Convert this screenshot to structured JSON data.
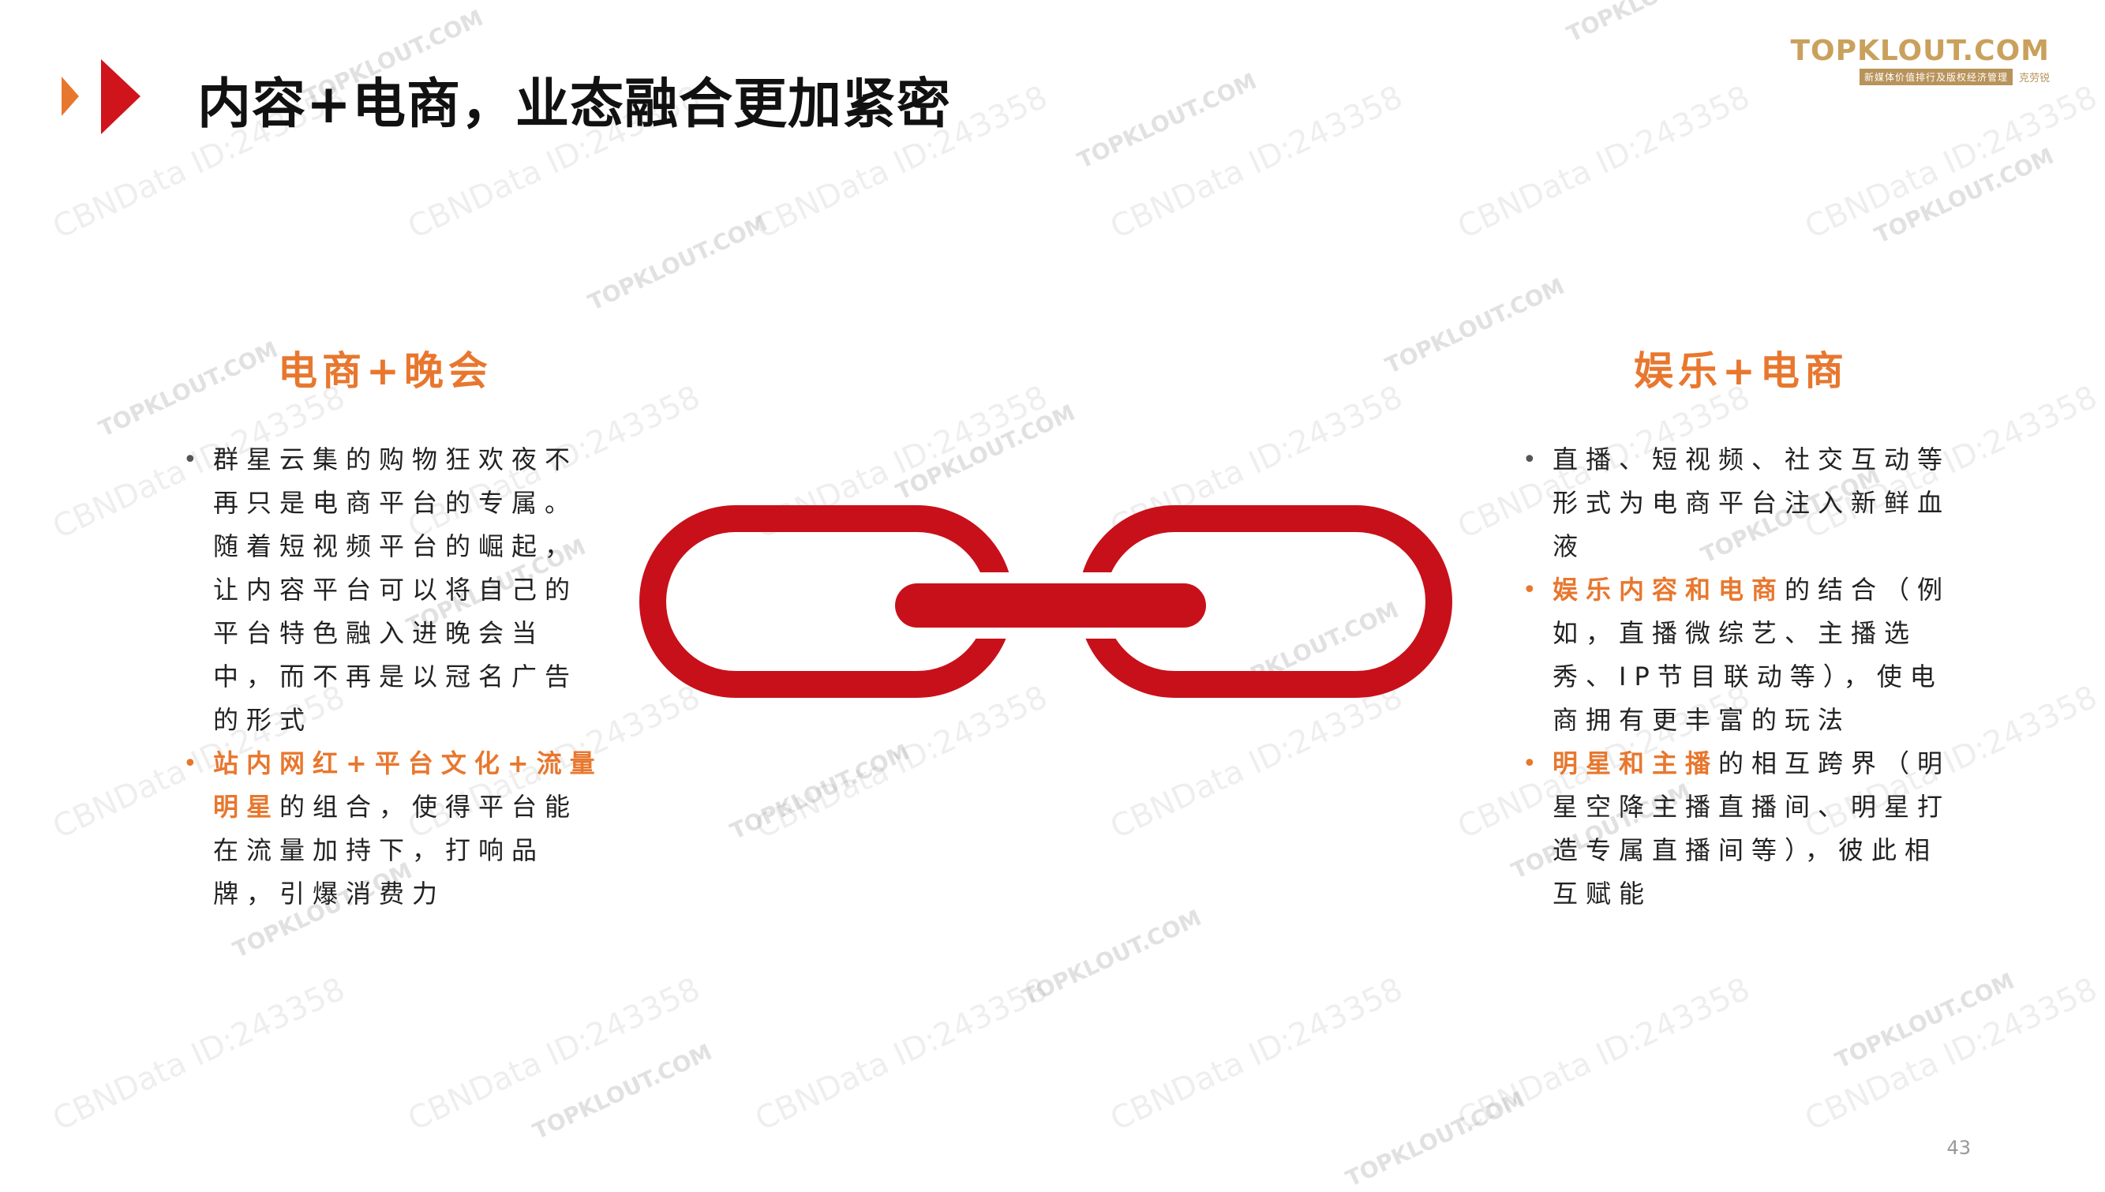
{
  "header": {
    "title": "内容+电商，业态融合更加紧密",
    "accent_color": "#d0141b",
    "secondary_accent": "#e8772e"
  },
  "logo": {
    "main": "TOPKLOUT.COM",
    "sub_bar": "新媒体价值排行及版权经济管理",
    "sub_tag": "克劳锐"
  },
  "left_section": {
    "title": "电商+晚会",
    "bullets": [
      {
        "segments": [
          {
            "text": "群星云集的购物狂欢夜不再只是电商平台的专属。随着短视频平台的崛起，让内容平台可以将自己的平台特色融入进晚会当中，而不再是以冠名广告的形式",
            "highlight": false
          }
        ]
      },
      {
        "segments": [
          {
            "text": "站内网红+平台文化+流量明星",
            "highlight": true
          },
          {
            "text": "的组合，使得平台能在流量加持下，打响品牌，引爆消费力",
            "highlight": false
          }
        ]
      }
    ]
  },
  "right_section": {
    "title": "娱乐+电商",
    "bullets": [
      {
        "segments": [
          {
            "text": "直播、短视频、社交互动等形式为电商平台注入新鲜血液",
            "highlight": false
          }
        ]
      },
      {
        "segments": [
          {
            "text": "娱乐内容和电商",
            "highlight": true
          },
          {
            "text": "的结合（例如，直播微综艺、主播选秀、IP节目联动等），使电商拥有更丰富的玩法",
            "highlight": false
          }
        ]
      },
      {
        "segments": [
          {
            "text": "明星和主播",
            "highlight": true
          },
          {
            "text": "的相互跨界（明星空降主播直播间、明星打造专属直播间等），彼此相互赋能",
            "highlight": false
          }
        ]
      }
    ]
  },
  "center_graphic": {
    "icon": "chain-link-icon",
    "color": "#c8101a"
  },
  "watermarks": {
    "text_a": "CBNData ID:243358",
    "text_b": "TOPKLOUT.COM"
  },
  "footer": {
    "page_number": "43"
  }
}
